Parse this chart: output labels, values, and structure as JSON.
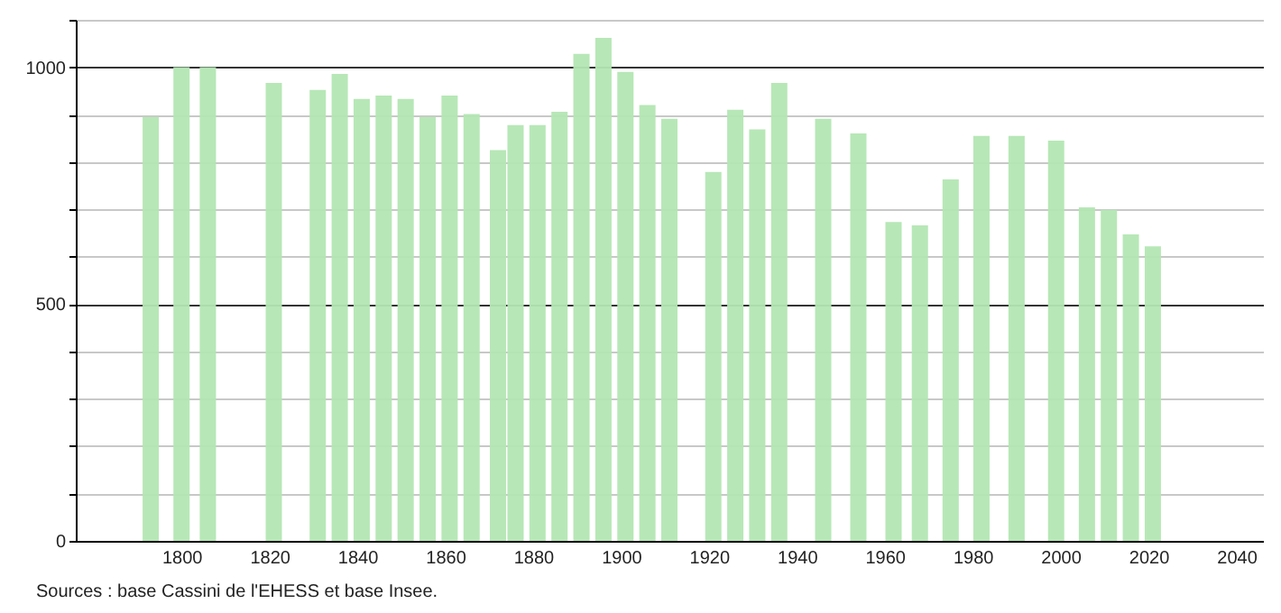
{
  "chart_data": {
    "type": "bar",
    "x": [
      1793,
      1800,
      1806,
      1821,
      1831,
      1836,
      1841,
      1846,
      1851,
      1856,
      1861,
      1866,
      1872,
      1876,
      1881,
      1886,
      1891,
      1896,
      1901,
      1906,
      1911,
      1921,
      1926,
      1931,
      1936,
      1946,
      1954,
      1962,
      1968,
      1975,
      1982,
      1990,
      1999,
      2006,
      2011,
      2016,
      2021
    ],
    "values": [
      895,
      1000,
      1000,
      967,
      952,
      986,
      933,
      940,
      933,
      895,
      940,
      901,
      825,
      878,
      878,
      906,
      1028,
      1062,
      990,
      920,
      891,
      779,
      910,
      869,
      967,
      891,
      860,
      673,
      666,
      763,
      855,
      855,
      845,
      704,
      699,
      647,
      622
    ],
    "color": "#b3e6b3",
    "xlim": [
      1778,
      2044
    ],
    "xticks": [
      1800,
      1820,
      1840,
      1860,
      1880,
      1900,
      1920,
      1940,
      1960,
      1980,
      2000,
      2020,
      2040
    ],
    "ylim": [
      0,
      1100
    ],
    "yticks": [
      0,
      {
        "value": 100,
        "label": null
      },
      {
        "value": 200,
        "label": null
      },
      {
        "value": 300,
        "label": null
      },
      {
        "value": 400,
        "label": null
      },
      500,
      {
        "value": 600,
        "label": null
      },
      {
        "value": 700,
        "label": null
      },
      {
        "value": 800,
        "label": null
      },
      {
        "value": 900,
        "label": null
      },
      1000,
      {
        "value": 1100,
        "label": null
      }
    ],
    "grid": "y",
    "annotations": [
      "Sources : base Cassini de l'EHESS et base Insee."
    ]
  }
}
